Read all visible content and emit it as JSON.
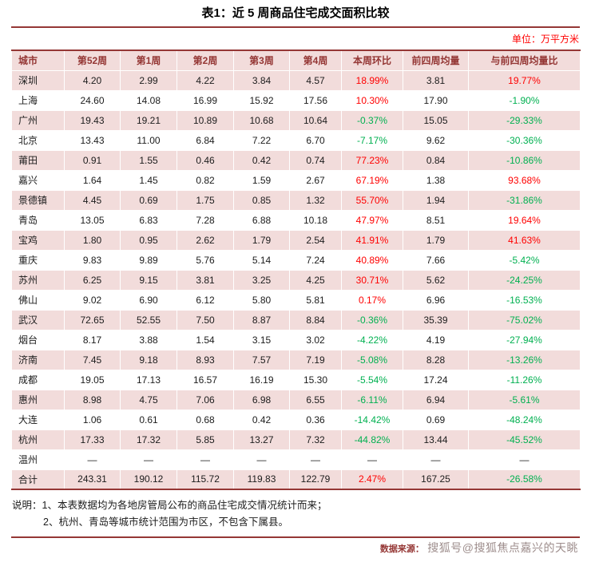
{
  "unit_label": "单位：万平方米",
  "colors": {
    "accent": "#953735",
    "header_bg": "#f2dcdb",
    "header_text": "#943634",
    "positive": "#ff0000",
    "negative": "#00b050"
  },
  "chart_data": {
    "type": "table",
    "title": "表1：近 5 周商品住宅成交面积比较",
    "unit": "万平方米",
    "columns": [
      "城市",
      "第52周",
      "第1周",
      "第2周",
      "第3周",
      "第4周",
      "本周环比",
      "前四周均量",
      "与前四周均量比"
    ],
    "rows": [
      [
        "深圳",
        "4.20",
        "2.99",
        "4.22",
        "3.84",
        "4.57",
        "18.99%",
        "3.81",
        "19.77%"
      ],
      [
        "上海",
        "24.60",
        "14.08",
        "16.99",
        "15.92",
        "17.56",
        "10.30%",
        "17.90",
        "-1.90%"
      ],
      [
        "广州",
        "19.43",
        "19.21",
        "10.89",
        "10.68",
        "10.64",
        "-0.37%",
        "15.05",
        "-29.33%"
      ],
      [
        "北京",
        "13.43",
        "11.00",
        "6.84",
        "7.22",
        "6.70",
        "-7.17%",
        "9.62",
        "-30.36%"
      ],
      [
        "莆田",
        "0.91",
        "1.55",
        "0.46",
        "0.42",
        "0.74",
        "77.23%",
        "0.84",
        "-10.86%"
      ],
      [
        "嘉兴",
        "1.64",
        "1.45",
        "0.82",
        "1.59",
        "2.67",
        "67.19%",
        "1.38",
        "93.68%"
      ],
      [
        "景德镇",
        "4.45",
        "0.69",
        "1.75",
        "0.85",
        "1.32",
        "55.70%",
        "1.94",
        "-31.86%"
      ],
      [
        "青岛",
        "13.05",
        "6.83",
        "7.28",
        "6.88",
        "10.18",
        "47.97%",
        "8.51",
        "19.64%"
      ],
      [
        "宝鸡",
        "1.80",
        "0.95",
        "2.62",
        "1.79",
        "2.54",
        "41.91%",
        "1.79",
        "41.63%"
      ],
      [
        "重庆",
        "9.83",
        "9.89",
        "5.76",
        "5.14",
        "7.24",
        "40.89%",
        "7.66",
        "-5.42%"
      ],
      [
        "苏州",
        "6.25",
        "9.15",
        "3.81",
        "3.25",
        "4.25",
        "30.71%",
        "5.62",
        "-24.25%"
      ],
      [
        "佛山",
        "9.02",
        "6.90",
        "6.12",
        "5.80",
        "5.81",
        "0.17%",
        "6.96",
        "-16.53%"
      ],
      [
        "武汉",
        "72.65",
        "52.55",
        "7.50",
        "8.87",
        "8.84",
        "-0.36%",
        "35.39",
        "-75.02%"
      ],
      [
        "烟台",
        "8.17",
        "3.88",
        "1.54",
        "3.15",
        "3.02",
        "-4.22%",
        "4.19",
        "-27.94%"
      ],
      [
        "济南",
        "7.45",
        "9.18",
        "8.93",
        "7.57",
        "7.19",
        "-5.08%",
        "8.28",
        "-13.26%"
      ],
      [
        "成都",
        "19.05",
        "17.13",
        "16.57",
        "16.19",
        "15.30",
        "-5.54%",
        "17.24",
        "-11.26%"
      ],
      [
        "惠州",
        "8.98",
        "4.75",
        "7.06",
        "6.98",
        "6.55",
        "-6.11%",
        "6.94",
        "-5.61%"
      ],
      [
        "大连",
        "1.06",
        "0.61",
        "0.68",
        "0.42",
        "0.36",
        "-14.42%",
        "0.69",
        "-48.24%"
      ],
      [
        "杭州",
        "17.33",
        "17.32",
        "5.85",
        "13.27",
        "7.32",
        "-44.82%",
        "13.44",
        "-45.52%"
      ],
      [
        "温州",
        "―",
        "―",
        "―",
        "―",
        "―",
        "―",
        "―",
        "―"
      ],
      [
        "合计",
        "243.31",
        "190.12",
        "115.72",
        "119.83",
        "122.79",
        "2.47%",
        "167.25",
        "-26.58%"
      ]
    ]
  },
  "notes": {
    "line1": "说明：1、本表数据均为各地房管局公布的商品住宅成交情况统计而来；",
    "line2": "2、杭州、青岛等城市统计范围为市区，不包含下属县。"
  },
  "source": {
    "label": "数据来源：",
    "watermark": "搜狐号@搜狐焦点嘉兴的天眺"
  }
}
